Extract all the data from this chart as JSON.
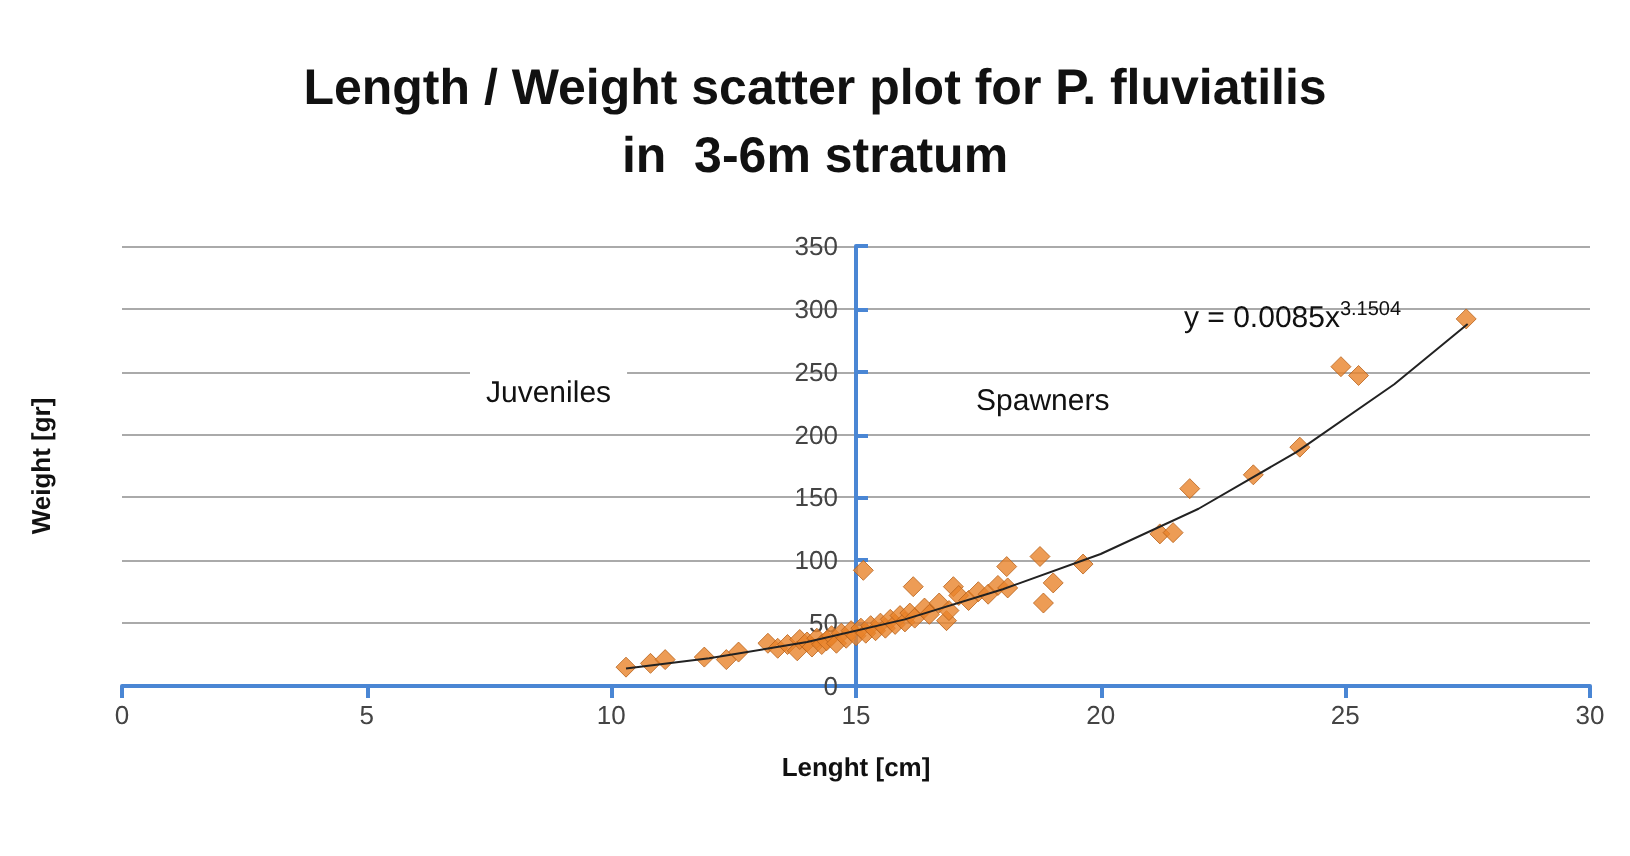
{
  "chart_data": {
    "type": "scatter",
    "title": "Length / Weight scatter plot for P. fluviatilis\nin  3-6m stratum",
    "xlabel": "Lenght [cm]",
    "ylabel": "Weight [gr]",
    "xlim": [
      0,
      30
    ],
    "xticks": [
      0,
      5,
      10,
      15,
      20,
      25,
      30
    ],
    "ylim": [
      0,
      350
    ],
    "yticks": [
      0,
      50,
      100,
      150,
      200,
      250,
      300,
      350
    ],
    "grid": "y",
    "marker": "diamond",
    "annotations": [
      "Juveniles",
      "Spawners",
      "y = 0.0085x$^{3.1504}$"
    ],
    "series": [
      {
        "color": "#e8832a",
        "x": [
          10.3,
          10.8,
          11.1,
          11.9,
          12.35,
          12.6,
          13.2,
          13.4,
          13.6,
          13.8,
          13.85,
          14.0,
          14.1,
          14.2,
          14.3,
          14.4,
          14.5,
          14.6,
          14.7,
          14.8,
          14.9,
          15.0,
          15.1,
          15.15,
          15.2,
          15.3,
          15.4,
          15.5,
          15.6,
          15.7,
          15.8,
          15.9,
          16.0,
          16.1,
          16.17,
          16.2,
          16.4,
          16.5,
          16.7,
          16.85,
          16.9,
          16.99,
          17.1,
          17.3,
          17.5,
          17.7,
          17.9,
          18.08,
          18.1,
          18.76,
          18.83,
          19.03,
          19.64,
          21.21,
          21.48,
          21.82,
          23.12,
          24.07,
          24.91,
          25.27,
          27.47
        ],
        "values": [
          15,
          18,
          21,
          23,
          21,
          27,
          34,
          30,
          33,
          28,
          37,
          35,
          31,
          38,
          33,
          36,
          40,
          34,
          42,
          38,
          44,
          40,
          46,
          92,
          42,
          48,
          44,
          50,
          46,
          53,
          49,
          56,
          51,
          58,
          79,
          54,
          62,
          57,
          66,
          52,
          60,
          79,
          72,
          68,
          75,
          73,
          80,
          95,
          78,
          103,
          66,
          82,
          97,
          121,
          122,
          157,
          168,
          190,
          254,
          247,
          292
        ]
      },
      {
        "type": "line",
        "color": "#222222",
        "marker": "none",
        "x": [
          10.3,
          12,
          14,
          16,
          18,
          20,
          22,
          24,
          26,
          27.5
        ],
        "values": [
          14,
          22,
          35,
          53,
          77,
          105,
          141,
          186,
          240,
          288
        ]
      }
    ]
  }
}
